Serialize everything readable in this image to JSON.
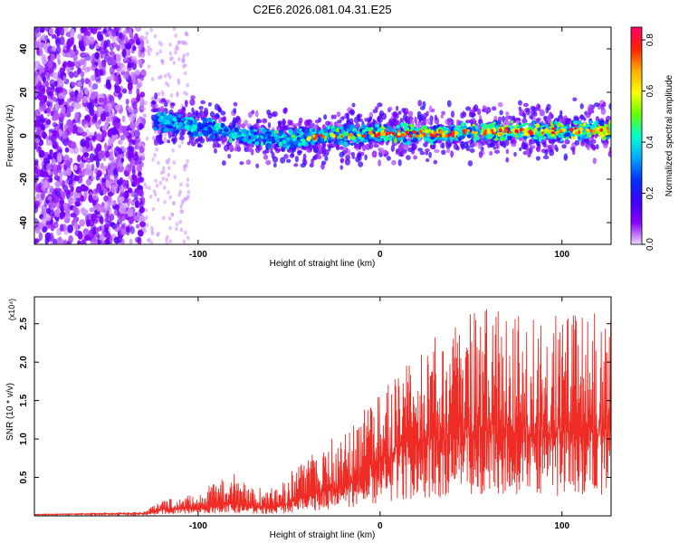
{
  "title": "C2E6.2026.081.04.31.E25",
  "colors": {
    "snr_line": "#ee2b24",
    "background": "#ffffff",
    "axis": "#000000",
    "colormap": [
      "#efd9ff",
      "#8a00ff",
      "#3a00ff",
      "#0033ff",
      "#00aaff",
      "#00ffcc",
      "#66ff00",
      "#ffff00",
      "#ffaa00",
      "#ff2200",
      "#ff0066"
    ]
  },
  "chart_data": [
    {
      "type": "heatmap",
      "xlabel": "Height of straight line (km)",
      "ylabel": "Frequency (Hz)",
      "xlim": [
        -190,
        127
      ],
      "ylim": [
        -50,
        50
      ],
      "x_ticks": [
        -100,
        0,
        100
      ],
      "x_tick_labels": [
        "-100",
        "0",
        "100"
      ],
      "y_ticks": [
        -40,
        -20,
        0,
        20,
        40
      ],
      "y_tick_labels": [
        "-40",
        "-20",
        "0",
        "20",
        "40"
      ],
      "colorbar": {
        "label": "Normalized spectral amplitude",
        "range": [
          0.0,
          0.85
        ],
        "ticks": [
          0.0,
          0.2,
          0.4,
          0.6,
          0.8
        ],
        "tick_labels": [
          "0.0",
          "0.2",
          "0.4",
          "0.6",
          "0.8"
        ]
      },
      "description_points": {
        "noise_region_x": [
          -190,
          -130
        ],
        "band_center_hz": [
          [
            -130,
            6
          ],
          [
            -120,
            7
          ],
          [
            -110,
            5
          ],
          [
            -100,
            4
          ],
          [
            -90,
            3
          ],
          [
            -80,
            1
          ],
          [
            -70,
            0
          ],
          [
            -60,
            -1
          ],
          [
            -50,
            -2
          ],
          [
            -40,
            -1
          ],
          [
            -30,
            0
          ],
          [
            -20,
            0
          ],
          [
            -10,
            1
          ],
          [
            0,
            1
          ],
          [
            20,
            1
          ],
          [
            40,
            1
          ],
          [
            60,
            2
          ],
          [
            80,
            2
          ],
          [
            100,
            2
          ],
          [
            127,
            3
          ]
        ],
        "band_halfwidth_hz": 5
      }
    },
    {
      "type": "line",
      "xlabel": "Height of straight line (km)",
      "ylabel": "SNR (10 * v/v)",
      "y_scale_label": "(x10⁴)",
      "xlim": [
        -190,
        127
      ],
      "ylim": [
        0,
        2.85
      ],
      "x_ticks": [
        -100,
        0,
        100
      ],
      "x_tick_labels": [
        "-100",
        "0",
        "100"
      ],
      "y_ticks": [
        0.5,
        1.0,
        1.5,
        2.0,
        2.5
      ],
      "y_tick_labels": [
        "0.5",
        "1.0",
        "1.5",
        "2.0",
        "2.5"
      ],
      "envelope": {
        "x": [
          -190,
          -130,
          -120,
          -100,
          -90,
          -80,
          -70,
          -60,
          -50,
          -40,
          -30,
          -20,
          -10,
          0,
          10,
          20,
          30,
          40,
          50,
          60,
          70,
          80,
          90,
          100,
          110,
          127
        ],
        "base": [
          0.02,
          0.03,
          0.08,
          0.1,
          0.12,
          0.15,
          0.12,
          0.1,
          0.15,
          0.25,
          0.3,
          0.35,
          0.5,
          0.7,
          0.8,
          0.9,
          0.95,
          1.0,
          1.05,
          1.05,
          1.05,
          1.05,
          1.05,
          1.05,
          1.05,
          1.05
        ],
        "peak": [
          0.02,
          0.05,
          0.2,
          0.3,
          0.45,
          0.55,
          0.4,
          0.35,
          0.55,
          0.8,
          1.0,
          1.1,
          1.4,
          1.65,
          1.9,
          2.05,
          2.35,
          2.45,
          2.65,
          2.7,
          2.7,
          2.7,
          2.75,
          2.65,
          2.6,
          2.75
        ]
      }
    }
  ]
}
